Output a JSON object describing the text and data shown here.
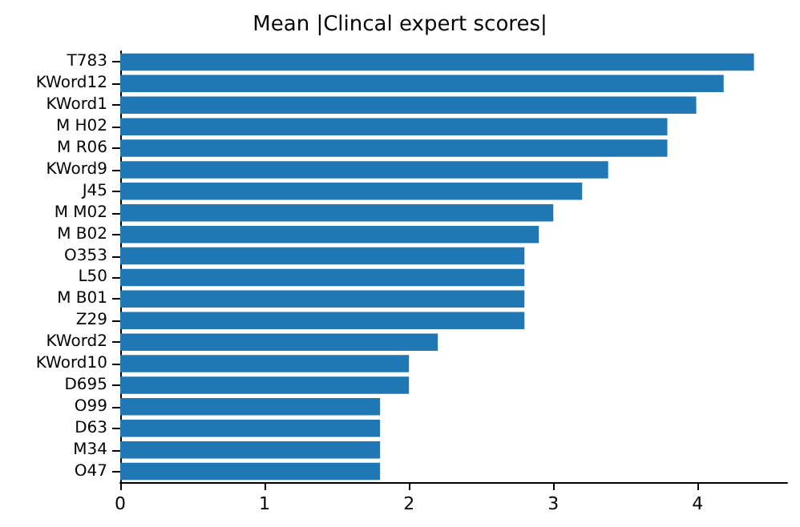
{
  "chart_data": {
    "type": "bar",
    "title": "Mean |Clincal expert scores|",
    "orientation": "horizontal",
    "categories": [
      "T783",
      "KWord12",
      "KWord1",
      "M H02",
      "M R06",
      "KWord9",
      "J45",
      "M M02",
      "M B02",
      "O353",
      "L50",
      "M B01",
      "Z29",
      "KWord2",
      "KWord10",
      "D695",
      "O99",
      "D63",
      "M34",
      "O47"
    ],
    "values": [
      4.39,
      4.18,
      3.99,
      3.79,
      3.79,
      3.38,
      3.2,
      3.0,
      2.9,
      2.8,
      2.8,
      2.8,
      2.8,
      2.2,
      2.0,
      2.0,
      1.8,
      1.8,
      1.8,
      1.8
    ],
    "color": "#1f77b4",
    "xlim": [
      0,
      4.62
    ],
    "xticks": [
      0,
      1,
      2,
      3,
      4
    ],
    "grid": false
  }
}
